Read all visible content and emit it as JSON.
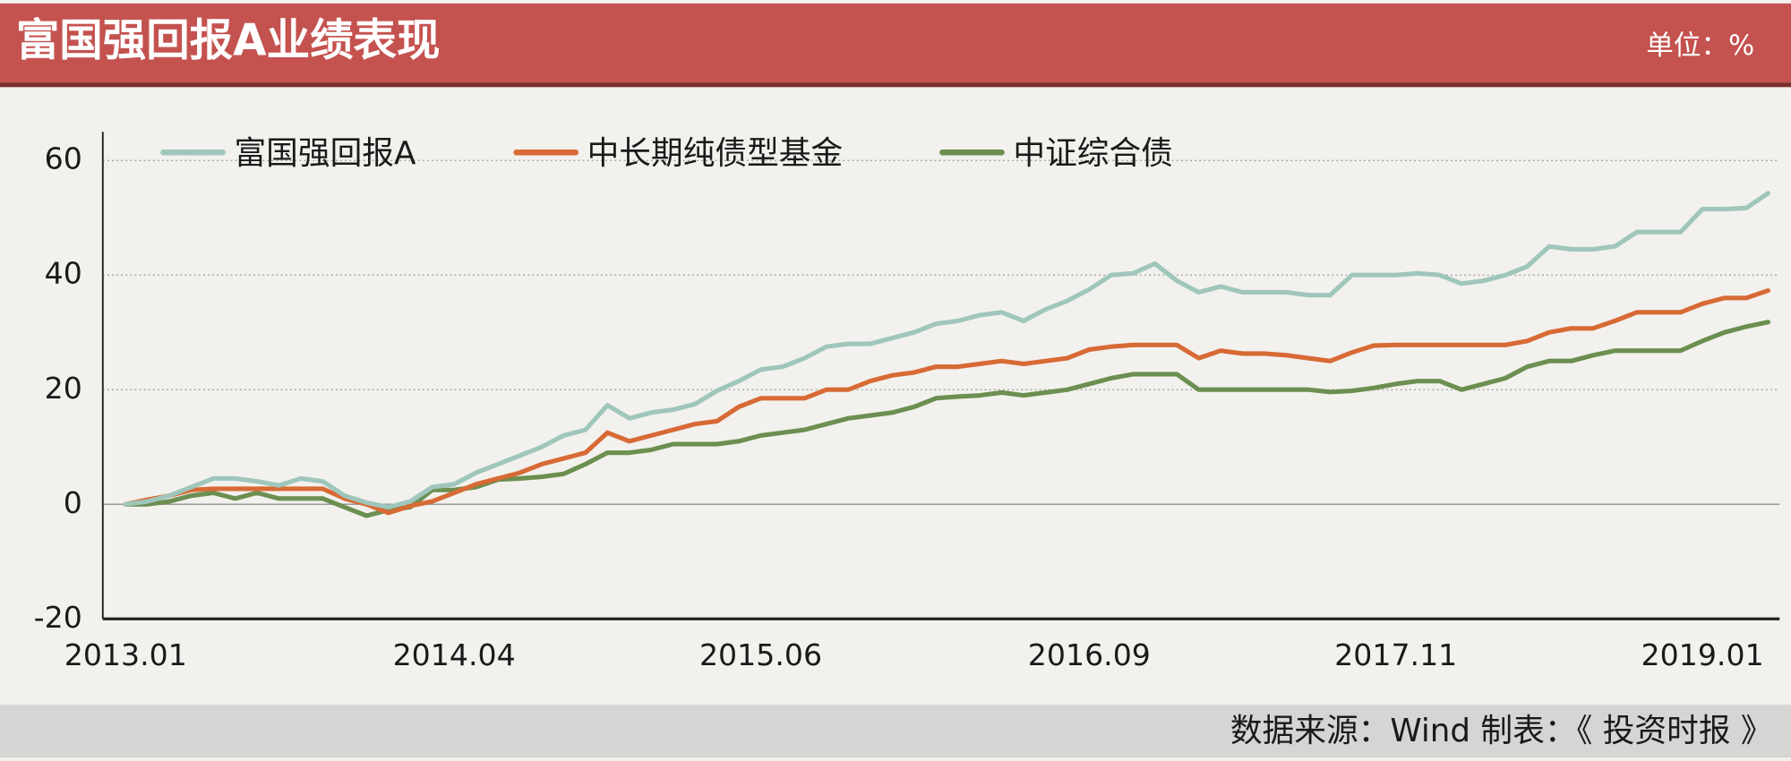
{
  "chart_data": {
    "type": "line",
    "title": "富国强回报A业绩表现",
    "unit": "单位：%",
    "source": "数据来源：Wind  制表：《 投资时报 》",
    "categories": [
      "2013.01",
      null,
      null,
      null,
      null,
      null,
      null,
      null,
      null,
      null,
      null,
      null,
      null,
      null,
      null,
      "2014.04",
      null,
      null,
      null,
      null,
      null,
      null,
      null,
      null,
      null,
      null,
      null,
      null,
      null,
      "2015.06",
      null,
      null,
      null,
      null,
      null,
      null,
      null,
      null,
      null,
      null,
      null,
      null,
      null,
      null,
      "2016.09",
      null,
      null,
      null,
      null,
      null,
      null,
      null,
      null,
      null,
      null,
      null,
      null,
      null,
      "2017.11",
      null,
      null,
      null,
      null,
      null,
      null,
      null,
      null,
      null,
      null,
      null,
      null,
      null,
      "2019.01",
      null,
      null,
      null
    ],
    "series": [
      {
        "name": "富国强回报A",
        "color": "#9fc6bb",
        "values": [
          0,
          0.5,
          1.5,
          3,
          4.5,
          4.5,
          4,
          3.3,
          4.5,
          4,
          1.5,
          0.3,
          -0.5,
          0.5,
          3,
          3.5,
          5.5,
          7,
          8.5,
          10,
          12,
          13,
          17.3,
          15,
          16,
          16.5,
          17.5,
          19.8,
          21.5,
          23.5,
          24,
          25.5,
          27.5,
          28,
          28,
          29,
          30,
          31.5,
          32,
          33,
          33.5,
          32,
          34,
          35.5,
          37.5,
          40,
          40.3,
          42,
          39,
          37,
          38,
          37,
          37,
          37,
          36.5,
          36.5,
          40,
          40,
          40,
          40.3,
          40,
          38.5,
          39,
          40,
          41.5,
          45,
          44.5,
          44.5,
          45,
          47.5,
          47.5,
          47.5,
          51.5,
          51.5,
          51.7,
          54.3
        ]
      },
      {
        "name": "中长期纯债型基金",
        "color": "#d86a35",
        "values": [
          0,
          0.8,
          1.5,
          2.5,
          2.7,
          2.7,
          2.7,
          2.7,
          2.7,
          2.7,
          1,
          0,
          -1.5,
          -0.3,
          0.5,
          2,
          3.5,
          4.5,
          5.5,
          7,
          8,
          9,
          12.5,
          11,
          12,
          13,
          14,
          14.5,
          17,
          18.5,
          18.5,
          18.5,
          20,
          20,
          21.5,
          22.5,
          23,
          24,
          24,
          24.5,
          25,
          24.5,
          25,
          25.5,
          27,
          27.5,
          27.8,
          27.8,
          27.8,
          25.5,
          26.8,
          26.3,
          26.3,
          26,
          25.5,
          25,
          26.5,
          27.7,
          27.8,
          27.8,
          27.8,
          27.8,
          27.8,
          27.8,
          28.5,
          30,
          30.7,
          30.7,
          32,
          33.5,
          33.5,
          33.5,
          35,
          36,
          36,
          37.3
        ]
      },
      {
        "name": "中证综合债",
        "color": "#6b8f50",
        "values": [
          0,
          0,
          0.5,
          1.5,
          2,
          1,
          2,
          1,
          1,
          1,
          -0.5,
          -2,
          -1,
          -0.5,
          2.5,
          2.5,
          3,
          4.3,
          4.5,
          4.8,
          5.3,
          7,
          9,
          9,
          9.5,
          10.5,
          10.5,
          10.5,
          11,
          12,
          12.5,
          13,
          14,
          15,
          15.5,
          16,
          17,
          18.5,
          18.8,
          19,
          19.5,
          19,
          19.5,
          20,
          21,
          22,
          22.7,
          22.7,
          22.7,
          20,
          20,
          20,
          20,
          20,
          20,
          19.6,
          19.8,
          20.3,
          21,
          21.5,
          21.5,
          20,
          21,
          22,
          24,
          25,
          25,
          26,
          26.8,
          26.8,
          26.8,
          26.8,
          28.5,
          30,
          31,
          31.8
        ]
      }
    ],
    "ylim": [
      -20,
      65
    ],
    "yticks": [
      -20,
      0,
      20,
      40,
      60
    ],
    "grid": true
  }
}
